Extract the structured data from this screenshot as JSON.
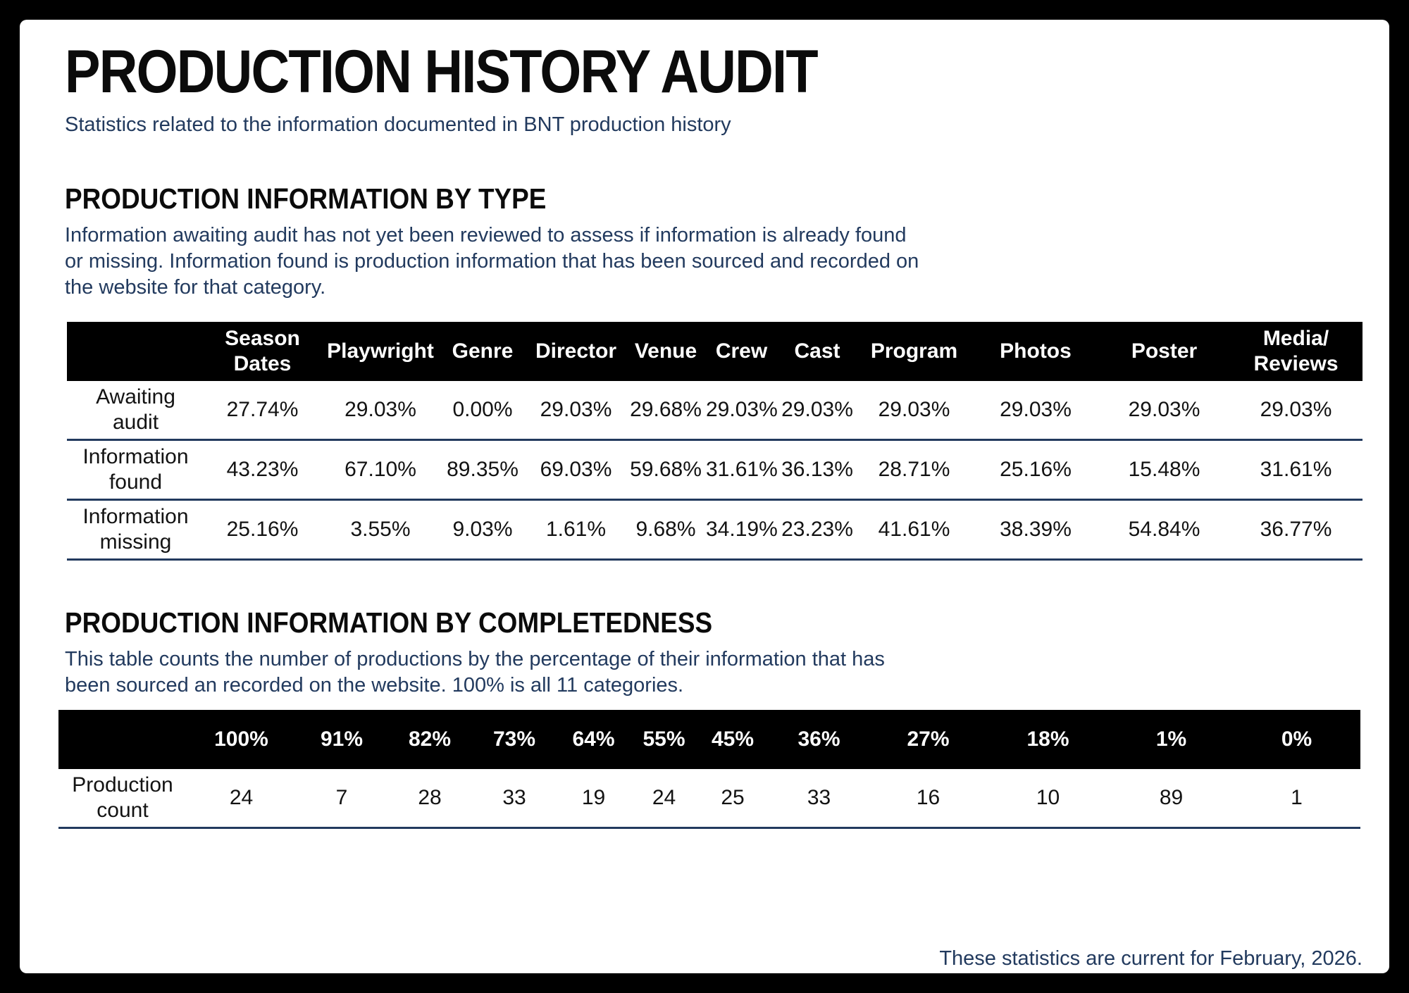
{
  "page": {
    "title": "PRODUCTION HISTORY AUDIT",
    "subtitle": "Statistics related to the information documented in BNT production history",
    "footer_note": "These statistics are current for February, 2026."
  },
  "colors": {
    "accent_navy": "#223a5e",
    "header_bg": "#000000",
    "header_text": "#ffffff",
    "frame": "#000000",
    "page_bg": "#ffffff"
  },
  "sections": [
    {
      "heading": "PRODUCTION INFORMATION BY TYPE",
      "description": "Information awaiting audit has not yet been reviewed to assess if information is already found or missing. Information found is production information that has been sourced and recorded on the website for that category."
    },
    {
      "heading": "PRODUCTION INFORMATION BY COMPLETEDNESS",
      "description": "This table counts the number of productions by the percentage of their information that has been sourced an recorded on the website. 100% is all 11 categories."
    }
  ],
  "tables": [
    {
      "name": "production-information-by-type",
      "columns": [
        "Season Dates",
        "Playwright",
        "Genre",
        "Director",
        "Venue",
        "Crew",
        "Cast",
        "Program",
        "Photos",
        "Poster",
        "Media/\nReviews"
      ],
      "rows": [
        {
          "label": "Awaiting\naudit",
          "values": [
            "27.74%",
            "29.03%",
            "0.00%",
            "29.03%",
            "29.68%",
            "29.03%",
            "29.03%",
            "29.03%",
            "29.03%",
            "29.03%",
            "29.03%"
          ]
        },
        {
          "label": "Information\nfound",
          "values": [
            "43.23%",
            "67.10%",
            "89.35%",
            "69.03%",
            "59.68%",
            "31.61%",
            "36.13%",
            "28.71%",
            "25.16%",
            "15.48%",
            "31.61%"
          ]
        },
        {
          "label": "Information\nmissing",
          "values": [
            "25.16%",
            "3.55%",
            "9.03%",
            "1.61%",
            "9.68%",
            "34.19%",
            "23.23%",
            "41.61%",
            "38.39%",
            "54.84%",
            "36.77%"
          ]
        }
      ]
    },
    {
      "name": "production-information-by-completedness",
      "columns": [
        "100%",
        "91%",
        "82%",
        "73%",
        "64%",
        "55%",
        "45%",
        "36%",
        "27%",
        "18%",
        "1%",
        "0%"
      ],
      "rows": [
        {
          "label": "Production\ncount",
          "values": [
            "24",
            "7",
            "28",
            "33",
            "19",
            "24",
            "25",
            "33",
            "16",
            "10",
            "89",
            "1"
          ]
        }
      ]
    }
  ]
}
